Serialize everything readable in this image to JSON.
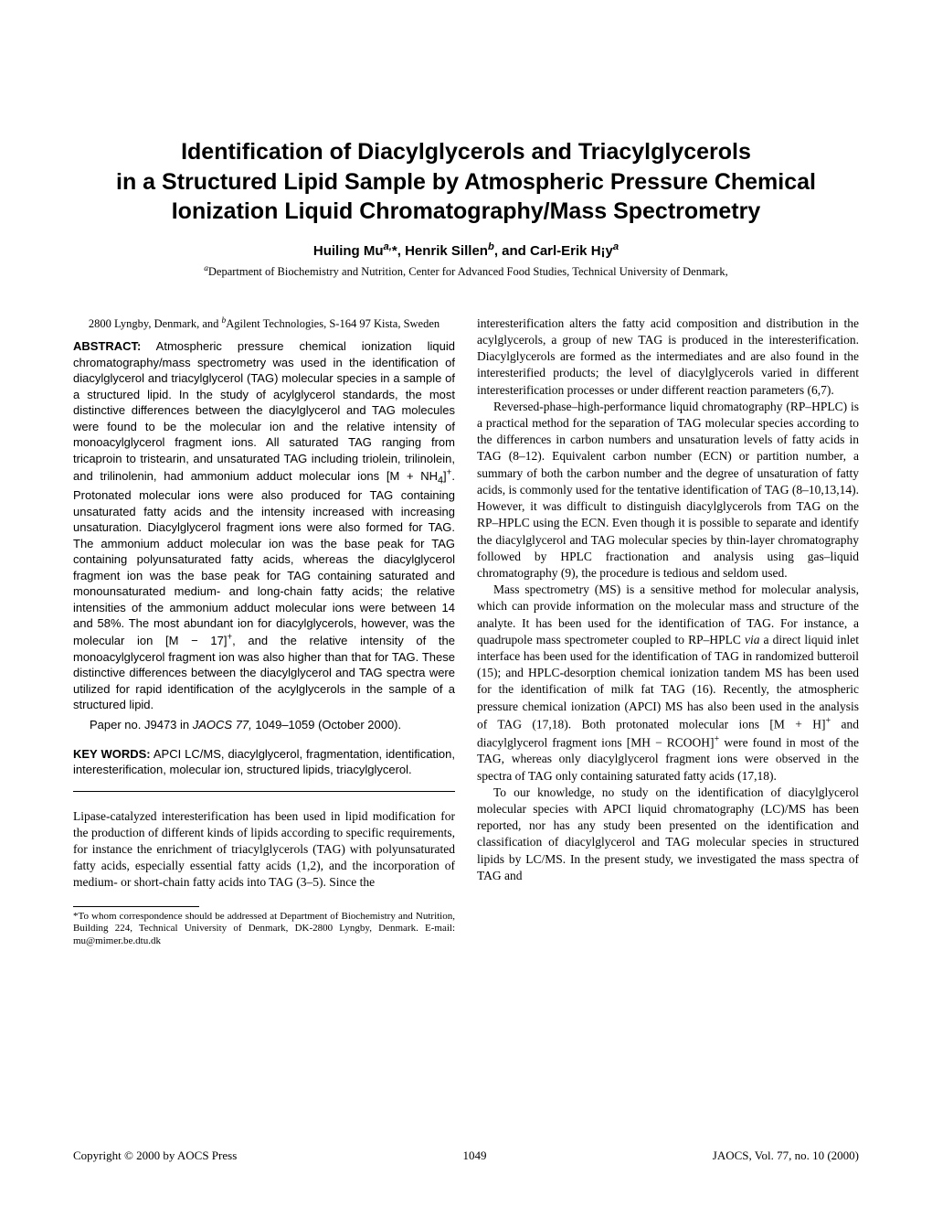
{
  "title_line1": "Identification of Diacylglycerols and Triacylglycerols",
  "title_line2": "in a Structured Lipid Sample by Atmospheric Pressure Chemical",
  "title_line3": "Ionization Liquid Chromatography/Mass Spectrometry",
  "authors_html": "Huiling Mu<sup><i>a,</i></sup>*, Henrik Sillen<sup><i>b</i></sup>, and Carl-Erik H¡y<sup><i>a</i></sup>",
  "affiliation_main_html": "<sup><i>a</i></sup>Department of Biochemistry and Nutrition, Center for Advanced Food Studies, Technical University of Denmark,",
  "affiliation_sub_html": "2800 Lyngby, Denmark, and <sup><i>b</i></sup>Agilent Technologies, S-164 97 Kista, Sweden",
  "abstract_label": "ABSTRACT:",
  "abstract_body_html": "Atmospheric pressure chemical ionization liquid chromatography/mass spectrometry was used in the identification of diacylglycerol and triacylglycerol (TAG) molecular species in a sample of a structured lipid. In the study of acylglycerol standards, the most distinctive differences between the diacylglycerol and TAG molecules were found to be the molecular ion and the relative intensity of monoacylglycerol fragment ions. All saturated TAG ranging from tricaproin to tristearin, and unsaturated TAG including triolein, trilinolein, and trilinolenin, had ammonium adduct molecular ions [M + NH<sub>4</sub>]<sup>+</sup>. Protonated molecular ions were also produced for TAG containing unsaturated fatty acids and the intensity increased with increasing unsaturation. Diacylglycerol fragment ions were also formed for TAG. The ammonium adduct molecular ion was the base peak for TAG containing polyunsaturated fatty acids, whereas the diacylglycerol fragment ion was the base peak for TAG containing saturated and monounsaturated medium- and long-chain fatty acids; the relative intensities of the ammonium adduct molecular ions were between 14 and 58%. The most abundant ion for diacylglycerols, however, was the molecular ion [M − 17]<sup>+</sup>, and the relative intensity of the monoacylglycerol fragment ion was also higher than that for TAG. These distinctive differences between the diacylglycerol and TAG spectra were utilized for rapid identification of the acylglycerols in the sample of a structured lipid.",
  "paper_no_html": "Paper no. J9473 in <i>JAOCS 77,</i> 1049–1059 (October 2000).",
  "keywords_label": "KEY WORDS:",
  "keywords_body": "APCI LC/MS, diacylglycerol, fragmentation, identification, interesterification, molecular ion, structured lipids, triacylglycerol.",
  "intro_para": "Lipase-catalyzed interesterification has been used in lipid modification for the production of different kinds of lipids according to specific requirements, for instance the enrichment of triacylglycerols (TAG) with polyunsaturated fatty acids, especially essential fatty acids (1,2), and the incorporation of medium- or short-chain fatty acids into TAG (3–5). Since the",
  "footnote": "*To whom correspondence should be addressed at Department of Biochemistry and Nutrition, Building 224, Technical University of Denmark, DK-2800 Lyngby, Denmark. E-mail: mu@mimer.be.dtu.dk",
  "r_para1": "interesterification alters the fatty acid composition and distribution in the acylglycerols, a group of new TAG is produced in the interesterification. Diacylglycerols are formed as the intermediates and are also found in the interesterified products; the level of diacylglycerols varied in different interesterification processes or under different reaction parameters (6,7).",
  "r_para2": "Reversed-phase–high-performance liquid chromatography (RP–HPLC) is a practical method for the separation of TAG molecular species according to the differences in carbon numbers and unsaturation levels of fatty acids in TAG (8–12). Equivalent carbon number (ECN) or partition number, a summary of both the carbon number and the degree of unsaturation of fatty acids, is commonly used for the tentative identification of TAG (8–10,13,14). However, it was difficult to distinguish diacylglycerols from TAG on the RP–HPLC using the ECN. Even though it is possible to separate and identify the diacylglycerol and TAG molecular species by thin-layer chromatography followed by HPLC fractionation and analysis using gas–liquid chromatography (9), the procedure is tedious and seldom used.",
  "r_para3_html": "Mass spectrometry (MS) is a sensitive method for molecular analysis, which can provide information on the molecular mass and structure of the analyte. It has been used for the identification of TAG. For instance, a quadrupole mass spectrometer coupled to RP–HPLC <i>via</i> a direct liquid inlet interface has been used for the identification of TAG in randomized butteroil (15); and HPLC-desorption chemical ionization tandem MS has been used for the identification of milk fat TAG (16). Recently, the atmospheric pressure chemical ionization (APCI) MS has also been used in the analysis of TAG (17,18). Both protonated molecular ions [M + H]<sup>+</sup> and diacylglycerol fragment ions [MH − RCOOH]<sup>+</sup> were found in most of the TAG, whereas only diacylglycerol fragment ions were observed in the spectra of TAG only containing saturated fatty acids (17,18).",
  "r_para4": "To our knowledge, no study on the identification of diacylglycerol molecular species with APCI liquid chromatography (LC)/MS has been reported, nor has any study been presented on the identification and classification of diacylglycerol and TAG molecular species in structured lipids by LC/MS. In the present study, we investigated the mass spectra of TAG and",
  "footer_left": "Copyright © 2000 by AOCS Press",
  "footer_center": "1049",
  "footer_right": "JAOCS, Vol. 77, no. 10 (2000)"
}
